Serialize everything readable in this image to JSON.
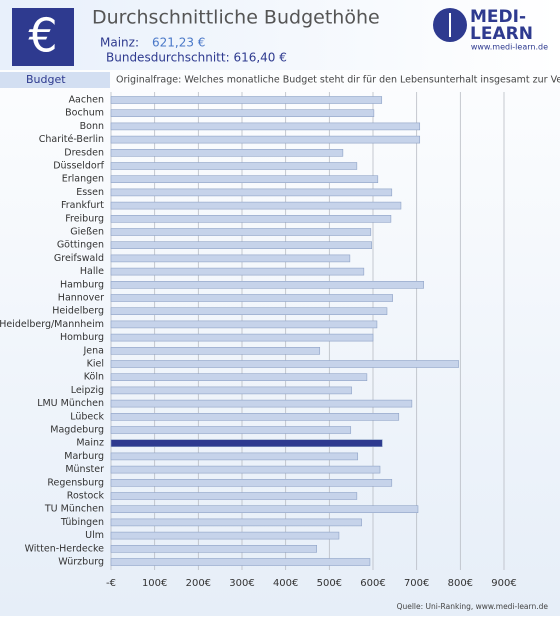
{
  "header": {
    "icon": "€",
    "title": "Durchschnittliche Budgethöhe",
    "mainz_label": "Mainz:",
    "mainz_value": "621,23 €",
    "average": "Bundesdurchschnitt: 616,40 €",
    "logo_line1": "MEDI-",
    "logo_line2": "LEARN",
    "logo_url": "www.medi-learn.de"
  },
  "chart_data": {
    "type": "hbar",
    "section": "Budget",
    "question": "Originalfrage: Welches monatliche Budget steht dir für den Lebensunterhalt insgesamt zur Verfügung?",
    "categories": [
      "Aachen",
      "Bochum",
      "Bonn",
      "Charité-Berlin",
      "Dresden",
      "Düsseldorf",
      "Erlangen",
      "Essen",
      "Frankfurt",
      "Freiburg",
      "Gießen",
      "Göttingen",
      "Greifswald",
      "Halle",
      "Hamburg",
      "Hannover",
      "Heidelberg",
      "Heidelberg/Mannheim",
      "Homburg",
      "Jena",
      "Kiel",
      "Köln",
      "Leipzig",
      "LMU München",
      "Lübeck",
      "Magdeburg",
      "Mainz",
      "Marburg",
      "Münster",
      "Regensburg",
      "Rostock",
      "TU München",
      "Tübingen",
      "Ulm",
      "Witten-Herdecke",
      "Würzburg"
    ],
    "values": [
      620,
      602,
      707,
      707,
      531,
      563,
      611,
      643,
      664,
      641,
      595,
      597,
      547,
      579,
      716,
      645,
      632,
      609,
      600,
      478,
      796,
      586,
      551,
      689,
      659,
      549,
      621.23,
      565,
      616,
      643,
      563,
      703,
      574,
      522,
      471,
      593
    ],
    "colors": [
      "#c6d3ea",
      "#c6d3ea",
      "#c6d3ea",
      "#c6d3ea",
      "#c6d3ea",
      "#c6d3ea",
      "#c6d3ea",
      "#c6d3ea",
      "#c6d3ea",
      "#c6d3ea",
      "#c6d3ea",
      "#c6d3ea",
      "#c6d3ea",
      "#c6d3ea",
      "#c6d3ea",
      "#c6d3ea",
      "#c6d3ea",
      "#c6d3ea",
      "#c6d3ea",
      "#c6d3ea",
      "#c6d3ea",
      "#c6d3ea",
      "#c6d3ea",
      "#c6d3ea",
      "#c6d3ea",
      "#c6d3ea",
      "#2e3a8f",
      "#c6d3ea",
      "#c6d3ea",
      "#c6d3ea",
      "#c6d3ea",
      "#c6d3ea",
      "#c6d3ea",
      "#c6d3ea",
      "#c6d3ea",
      "#c6d3ea"
    ],
    "xlim": [
      0,
      900
    ],
    "xticks": [
      {
        "value": 0,
        "label": "-€"
      },
      {
        "value": 100,
        "label": "100€"
      },
      {
        "value": 200,
        "label": "200€"
      },
      {
        "value": 300,
        "label": "300€"
      },
      {
        "value": 400,
        "label": "400€"
      },
      {
        "value": 500,
        "label": "500€"
      },
      {
        "value": 600,
        "label": "600€"
      },
      {
        "value": 700,
        "label": "700€"
      },
      {
        "value": 800,
        "label": "800€"
      },
      {
        "value": 900,
        "label": "900€"
      }
    ],
    "grid": true,
    "source": "Quelle: Uni-Ranking, www.medi-learn.de"
  }
}
